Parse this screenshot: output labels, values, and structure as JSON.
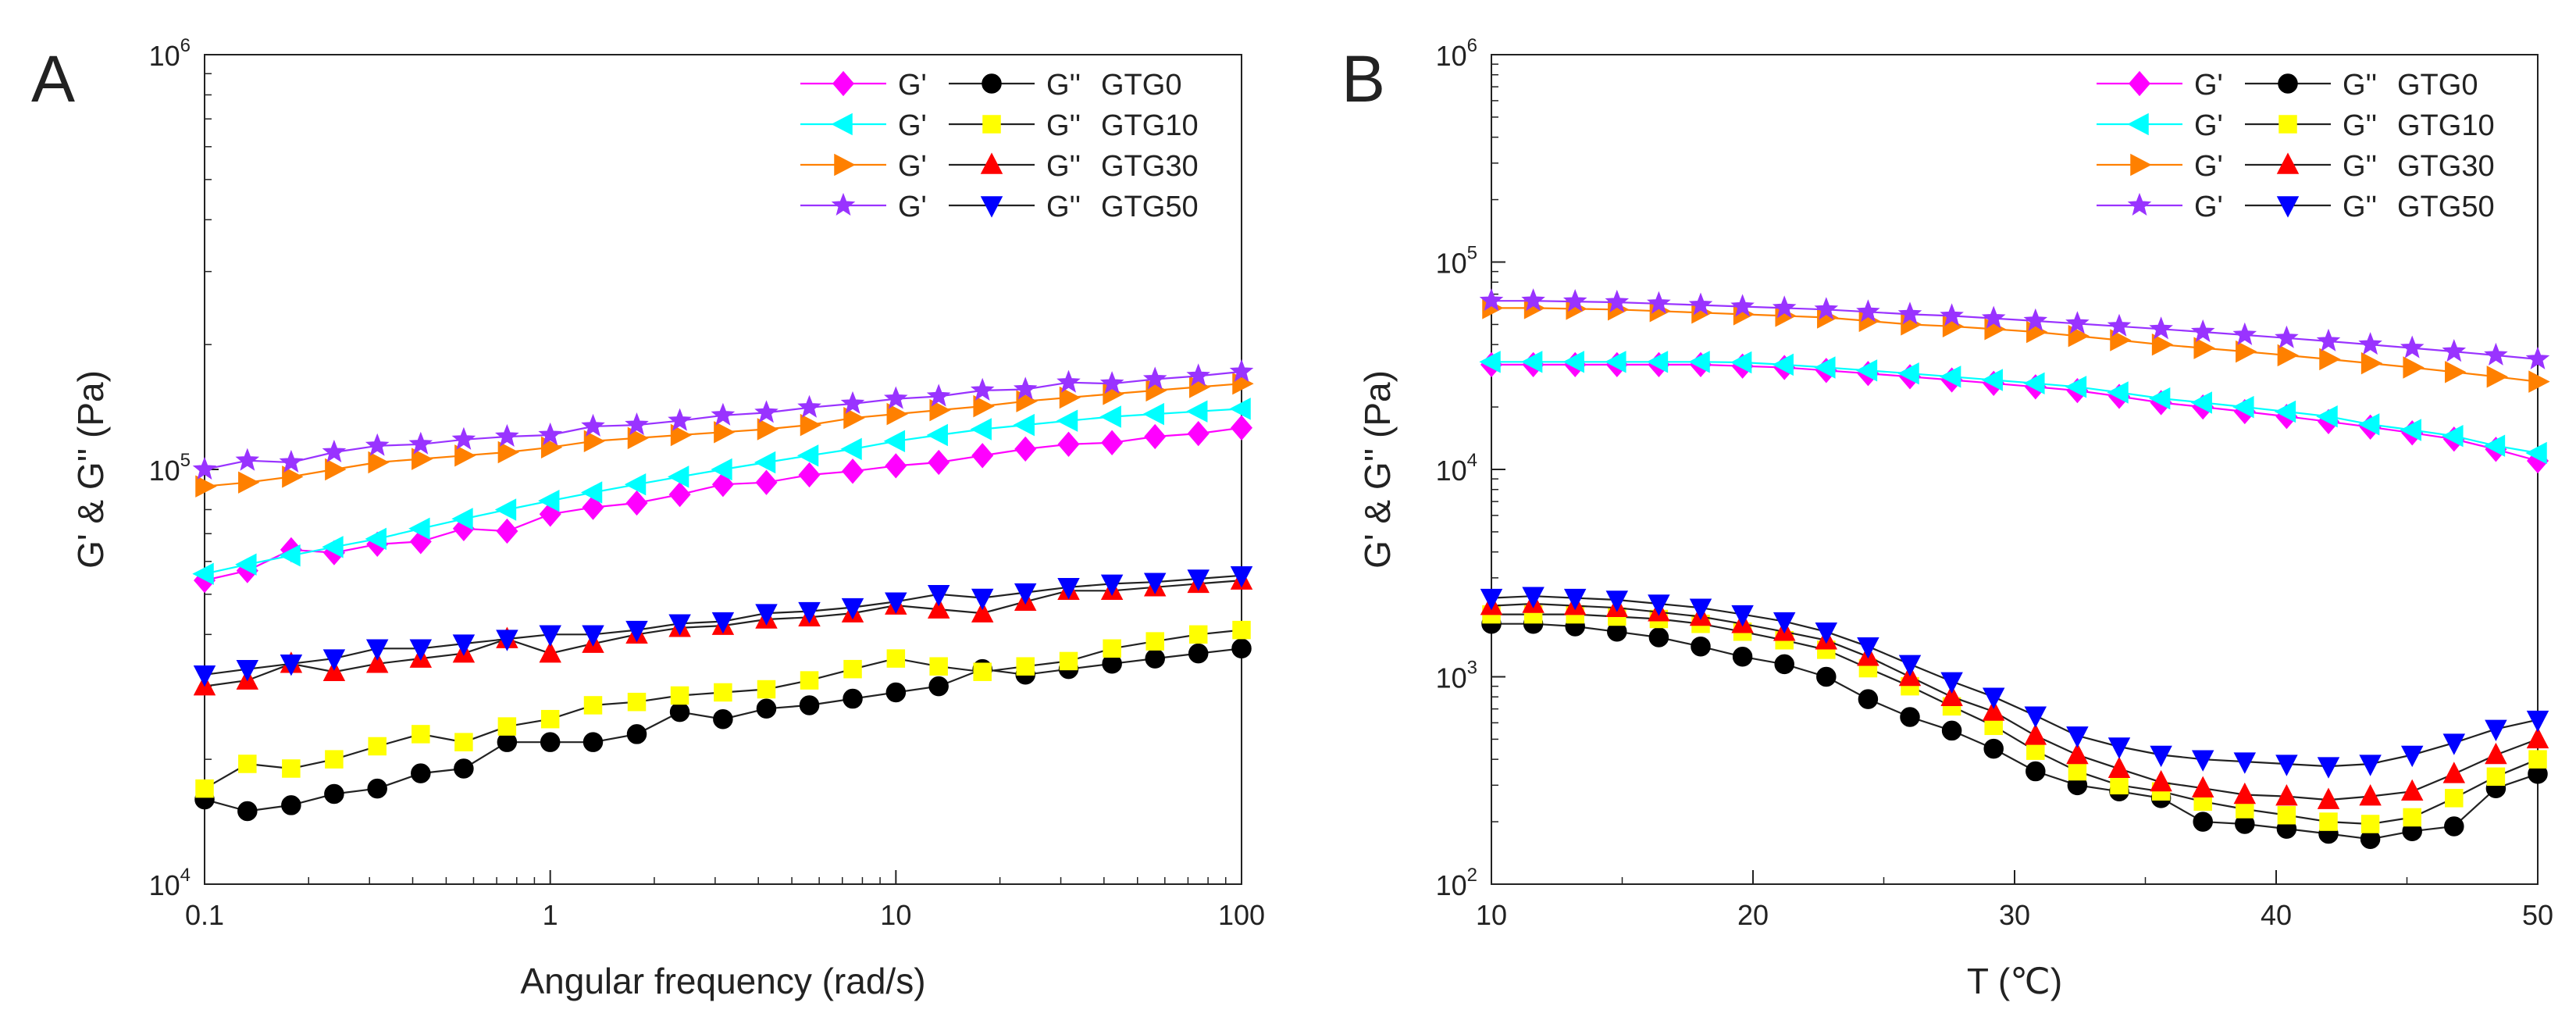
{
  "figure": {
    "colors": {
      "GTG0": "#FF00FF",
      "GTG10": "#00FFFF",
      "GTG30": "#FF8000",
      "GTG50": "#9933FF"
    },
    "lossColors": {
      "GTG0": "#000000",
      "GTG10": "#FFFF00",
      "GTG30": "#FF0000",
      "GTG50": "#0000FF"
    }
  },
  "chart_data": [
    {
      "type": "line",
      "panel_label": "A",
      "xlabel": "Angular frequency (rad/s)",
      "ylabel": "G' & G'' (Pa)",
      "xscale": "log",
      "yscale": "log",
      "xlim": [
        0.1,
        100
      ],
      "ylim": [
        10000,
        1000000
      ],
      "x_tick_labels": [
        "0.1",
        "1",
        "10",
        "100"
      ],
      "y_tick_labels": [
        {
          "base": "10",
          "exp": "4"
        },
        {
          "base": "10",
          "exp": "5"
        },
        {
          "base": "10",
          "exp": "6"
        }
      ],
      "legend_position": "top-right",
      "legend": [
        {
          "gp": "G'",
          "gpp": "G''",
          "label": "GTG0"
        },
        {
          "gp": "G'",
          "gpp": "G''",
          "label": "GTG10"
        },
        {
          "gp": "G'",
          "gpp": "G''",
          "label": "GTG30"
        },
        {
          "gp": "G'",
          "gpp": "G''",
          "label": "GTG50"
        }
      ],
      "x": [
        0.1,
        0.133,
        0.178,
        0.237,
        0.316,
        0.422,
        0.562,
        0.75,
        1.0,
        1.33,
        1.78,
        2.37,
        3.16,
        4.22,
        5.62,
        7.5,
        10,
        13.3,
        17.8,
        23.7,
        31.6,
        42.2,
        56.2,
        75,
        100
      ],
      "series": [
        {
          "name": "G' GTG0",
          "sample": "GTG0",
          "modulus": "G'",
          "marker": "diamond",
          "color": "#FF00FF",
          "values": [
            54000,
            57000,
            64000,
            63000,
            66000,
            67000,
            72000,
            71000,
            78000,
            81000,
            83000,
            87000,
            92000,
            93000,
            97000,
            99000,
            102000,
            104000,
            108000,
            112000,
            115000,
            116000,
            120000,
            122000,
            126000
          ]
        },
        {
          "name": "G'' GTG0",
          "sample": "GTG0",
          "modulus": "G''",
          "marker": "circle",
          "color": "#000000",
          "values": [
            16000,
            15000,
            15500,
            16500,
            17000,
            18500,
            19000,
            22000,
            22000,
            22000,
            23000,
            26000,
            25000,
            26500,
            27000,
            28000,
            29000,
            30000,
            33000,
            32000,
            33000,
            34000,
            35000,
            36000,
            37000
          ]
        },
        {
          "name": "G' GTG10",
          "sample": "GTG10",
          "modulus": "G'",
          "marker": "triangle-left",
          "color": "#00FFFF",
          "values": [
            56000,
            59000,
            62000,
            65000,
            68000,
            72000,
            76000,
            80000,
            84000,
            88000,
            92000,
            96000,
            100000,
            104000,
            108000,
            112000,
            117000,
            121000,
            125000,
            128000,
            131000,
            134000,
            136000,
            138000,
            140000
          ]
        },
        {
          "name": "G'' GTG10",
          "sample": "GTG10",
          "modulus": "G''",
          "marker": "square",
          "color": "#FFFF00",
          "values": [
            17000,
            19500,
            19000,
            20000,
            21500,
            23000,
            22000,
            24000,
            25000,
            27000,
            27500,
            28500,
            29000,
            29500,
            31000,
            33000,
            35000,
            33500,
            32500,
            33500,
            34500,
            37000,
            38500,
            40000,
            41000
          ]
        },
        {
          "name": "G' GTG30",
          "sample": "GTG30",
          "modulus": "G'",
          "marker": "triangle-right",
          "color": "#FF8000",
          "values": [
            91000,
            93000,
            96000,
            100000,
            104000,
            106000,
            108000,
            110000,
            113000,
            117000,
            119000,
            121000,
            123000,
            125000,
            128000,
            133000,
            136000,
            139000,
            142000,
            146000,
            149000,
            152000,
            155000,
            158000,
            161000
          ]
        },
        {
          "name": "G'' GTG30",
          "sample": "GTG30",
          "modulus": "G''",
          "marker": "triangle-up",
          "color": "#FF0000",
          "values": [
            30000,
            31000,
            34000,
            32500,
            34000,
            35000,
            36000,
            39000,
            36000,
            38000,
            40000,
            41500,
            42000,
            43500,
            44000,
            45000,
            47000,
            46000,
            45000,
            48000,
            51000,
            51000,
            52000,
            53000,
            54000
          ]
        },
        {
          "name": "G' GTG50",
          "sample": "GTG50",
          "modulus": "G'",
          "marker": "star",
          "color": "#9933FF",
          "values": [
            100000,
            105000,
            104000,
            110000,
            114000,
            115000,
            118000,
            120000,
            121000,
            127000,
            128000,
            131000,
            135000,
            137000,
            141000,
            144000,
            148000,
            150000,
            155000,
            156000,
            162000,
            161000,
            165000,
            168000,
            172000
          ]
        },
        {
          "name": "G'' GTG50",
          "sample": "GTG50",
          "modulus": "G''",
          "marker": "triangle-down",
          "color": "#0000FF",
          "values": [
            32000,
            33000,
            34000,
            35000,
            37000,
            37000,
            38000,
            39000,
            40000,
            40000,
            41000,
            42500,
            43000,
            45000,
            45500,
            46500,
            48000,
            50000,
            49000,
            50500,
            52000,
            53000,
            53500,
            54500,
            55500
          ]
        }
      ]
    },
    {
      "type": "line",
      "panel_label": "B",
      "xlabel": "T (℃)",
      "ylabel": "G' & G'' (Pa)",
      "xscale": "linear",
      "yscale": "log",
      "xlim": [
        10,
        50
      ],
      "ylim": [
        100,
        1000000
      ],
      "x_tick_labels": [
        "10",
        "20",
        "30",
        "40",
        "50"
      ],
      "x_ticks": [
        10,
        20,
        30,
        40,
        50
      ],
      "y_tick_labels": [
        {
          "base": "10",
          "exp": "2"
        },
        {
          "base": "10",
          "exp": "3"
        },
        {
          "base": "10",
          "exp": "4"
        },
        {
          "base": "10",
          "exp": "5"
        },
        {
          "base": "10",
          "exp": "6"
        }
      ],
      "legend_position": "top-right",
      "legend": [
        {
          "gp": "G'",
          "gpp": "G''",
          "label": "GTG0"
        },
        {
          "gp": "G'",
          "gpp": "G''",
          "label": "GTG10"
        },
        {
          "gp": "G'",
          "gpp": "G''",
          "label": "GTG30"
        },
        {
          "gp": "G'",
          "gpp": "G''",
          "label": "GTG50"
        }
      ],
      "x": [
        10.0,
        11.6,
        13.2,
        14.8,
        16.4,
        18.0,
        19.6,
        21.2,
        22.8,
        24.4,
        26.0,
        27.6,
        29.2,
        30.8,
        32.4,
        34.0,
        35.6,
        37.2,
        38.8,
        40.4,
        42.0,
        43.6,
        45.2,
        46.8,
        48.4,
        50.0
      ],
      "series": [
        {
          "name": "G' GTG0",
          "sample": "GTG0",
          "modulus": "G'",
          "marker": "diamond",
          "color": "#FF00FF",
          "values": [
            32000,
            32000,
            32000,
            32000,
            32000,
            32000,
            31500,
            31000,
            30000,
            29000,
            28000,
            27000,
            26000,
            25000,
            24000,
            22500,
            21000,
            20000,
            19000,
            18000,
            17000,
            16000,
            15000,
            14000,
            12500,
            11000
          ]
        },
        {
          "name": "G'' GTG0",
          "sample": "GTG0",
          "modulus": "G''",
          "marker": "circle",
          "color": "#000000",
          "values": [
            1800,
            1800,
            1750,
            1650,
            1550,
            1400,
            1250,
            1150,
            1000,
            780,
            640,
            550,
            450,
            350,
            300,
            280,
            260,
            200,
            195,
            185,
            175,
            165,
            180,
            190,
            290,
            340
          ]
        },
        {
          "name": "G' GTG10",
          "sample": "GTG10",
          "modulus": "G'",
          "marker": "triangle-left",
          "color": "#00FFFF",
          "values": [
            33000,
            33000,
            33000,
            33000,
            33000,
            33000,
            32800,
            32000,
            31000,
            30000,
            29000,
            28000,
            27000,
            26000,
            25000,
            23500,
            22000,
            21000,
            20000,
            19000,
            18000,
            16500,
            15500,
            14500,
            13000,
            12000
          ]
        },
        {
          "name": "G'' GTG10",
          "sample": "GTG10",
          "modulus": "G''",
          "marker": "square",
          "color": "#FFFF00",
          "values": [
            2000,
            2000,
            2000,
            1950,
            1900,
            1800,
            1650,
            1500,
            1350,
            1100,
            900,
            720,
            580,
            440,
            350,
            300,
            280,
            250,
            230,
            215,
            200,
            195,
            210,
            260,
            330,
            400
          ]
        },
        {
          "name": "G' GTG30",
          "sample": "GTG30",
          "modulus": "G'",
          "marker": "triangle-right",
          "color": "#FF8000",
          "values": [
            60000,
            60000,
            59500,
            59000,
            58000,
            57000,
            56000,
            55000,
            54000,
            52000,
            50000,
            49000,
            47500,
            46000,
            44000,
            42000,
            40000,
            38500,
            37000,
            35500,
            34000,
            32500,
            31000,
            29500,
            28000,
            26500
          ]
        },
        {
          "name": "G'' GTG30",
          "sample": "GTG30",
          "modulus": "G''",
          "marker": "triangle-up",
          "color": "#FF0000",
          "values": [
            2200,
            2250,
            2200,
            2150,
            2050,
            1950,
            1800,
            1650,
            1500,
            1250,
            1000,
            800,
            680,
            520,
            420,
            360,
            310,
            290,
            270,
            265,
            255,
            265,
            280,
            340,
            420,
            500
          ]
        },
        {
          "name": "G' GTG50",
          "sample": "GTG50",
          "modulus": "G'",
          "marker": "star",
          "color": "#9933FF",
          "values": [
            65000,
            65000,
            64500,
            64000,
            63000,
            62000,
            61000,
            60000,
            59000,
            57500,
            56000,
            55000,
            53500,
            52000,
            50500,
            49000,
            47500,
            46000,
            44500,
            43000,
            41500,
            40000,
            38500,
            37000,
            35500,
            34000
          ]
        },
        {
          "name": "G'' GTG50",
          "sample": "GTG50",
          "modulus": "G''",
          "marker": "triangle-down",
          "color": "#0000FF",
          "values": [
            2400,
            2450,
            2400,
            2350,
            2250,
            2150,
            2000,
            1850,
            1650,
            1400,
            1150,
            950,
            800,
            650,
            520,
            460,
            420,
            400,
            390,
            380,
            370,
            380,
            420,
            480,
            560,
            620
          ]
        }
      ]
    }
  ]
}
